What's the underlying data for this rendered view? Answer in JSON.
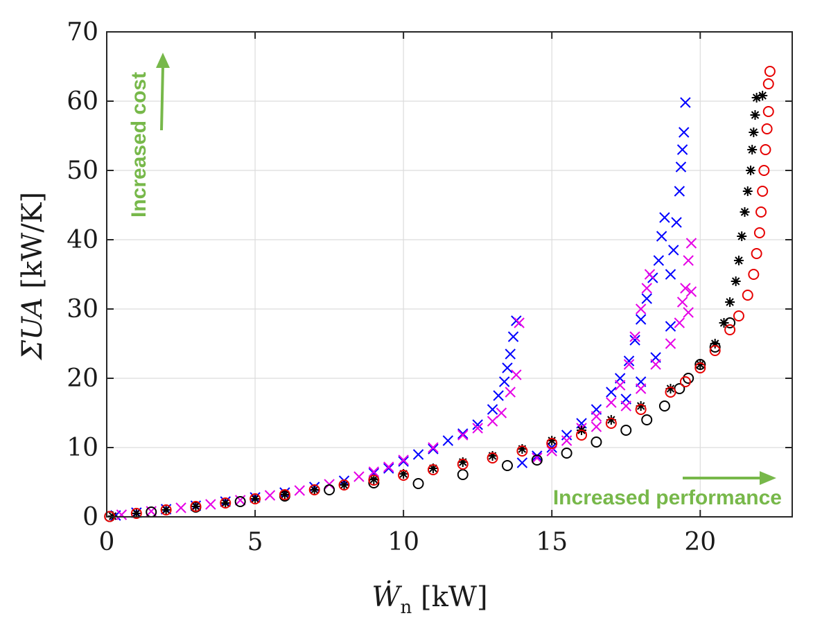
{
  "chart_data": {
    "type": "scatter",
    "title": "",
    "xlabel": {
      "symbol": "Ẇ",
      "subscript": "n",
      "unit": "[kW]"
    },
    "ylabel": {
      "symbol": "ΣUA",
      "unit": "[kW/K]"
    },
    "xlim": [
      0,
      23.1
    ],
    "ylim": [
      0,
      70
    ],
    "xticks": [
      0,
      5,
      10,
      15,
      20
    ],
    "yticks": [
      0,
      10,
      20,
      30,
      40,
      50,
      60,
      70
    ],
    "xtick_labels": [
      "0",
      "5",
      "10",
      "15",
      "20"
    ],
    "ytick_labels": [
      "0",
      "10",
      "20",
      "30",
      "40",
      "50",
      "60",
      "70"
    ],
    "grid": true,
    "series": [
      {
        "marker": "x",
        "color": "#0000ff",
        "points": [
          [
            0.3,
            0.2
          ],
          [
            1.0,
            0.6
          ],
          [
            2.0,
            1.1
          ],
          [
            3.0,
            1.6
          ],
          [
            4.0,
            2.2
          ],
          [
            5.0,
            2.8
          ],
          [
            6.0,
            3.5
          ],
          [
            7.0,
            4.3
          ],
          [
            8.0,
            5.2
          ],
          [
            9.0,
            6.3
          ],
          [
            9.5,
            7.0
          ],
          [
            10.0,
            8.0
          ],
          [
            10.5,
            9.0
          ],
          [
            11.0,
            9.8
          ],
          [
            11.5,
            11.0
          ],
          [
            12.0,
            12.0
          ],
          [
            12.5,
            13.3
          ],
          [
            13.0,
            15.5
          ],
          [
            13.2,
            17.5
          ],
          [
            13.4,
            19.5
          ],
          [
            13.5,
            21.5
          ],
          [
            13.6,
            23.5
          ],
          [
            13.7,
            26.0
          ],
          [
            13.8,
            28.3
          ],
          [
            14.0,
            7.8
          ],
          [
            14.5,
            8.8
          ],
          [
            15.0,
            10.0
          ],
          [
            15.5,
            11.8
          ],
          [
            16.0,
            13.5
          ],
          [
            16.5,
            15.5
          ],
          [
            17.0,
            18.0
          ],
          [
            17.3,
            20.0
          ],
          [
            17.6,
            22.5
          ],
          [
            17.8,
            25.5
          ],
          [
            18.0,
            28.5
          ],
          [
            18.2,
            31.5
          ],
          [
            18.4,
            34.5
          ],
          [
            18.6,
            37.0
          ],
          [
            18.7,
            40.5
          ],
          [
            18.8,
            43.2
          ],
          [
            19.0,
            35.0
          ],
          [
            19.1,
            38.5
          ],
          [
            19.2,
            42.5
          ],
          [
            19.3,
            47.0
          ],
          [
            19.35,
            50.5
          ],
          [
            19.4,
            53.0
          ],
          [
            19.45,
            55.5
          ],
          [
            19.5,
            59.8
          ],
          [
            17.5,
            17.0
          ],
          [
            18.0,
            19.5
          ],
          [
            18.5,
            23.0
          ],
          [
            19.0,
            27.5
          ]
        ]
      },
      {
        "marker": "x",
        "color": "#e600e6",
        "points": [
          [
            0.5,
            0.3
          ],
          [
            1.5,
            0.8
          ],
          [
            2.5,
            1.3
          ],
          [
            3.5,
            1.8
          ],
          [
            4.5,
            2.4
          ],
          [
            5.5,
            3.1
          ],
          [
            6.5,
            3.8
          ],
          [
            7.5,
            4.7
          ],
          [
            8.5,
            5.8
          ],
          [
            9.0,
            6.5
          ],
          [
            9.5,
            7.2
          ],
          [
            10.0,
            8.2
          ],
          [
            11.0,
            10.0
          ],
          [
            12.0,
            11.8
          ],
          [
            12.5,
            12.8
          ],
          [
            13.0,
            13.8
          ],
          [
            13.3,
            15.0
          ],
          [
            13.6,
            18.0
          ],
          [
            13.8,
            20.5
          ],
          [
            13.9,
            28.0
          ],
          [
            14.5,
            8.5
          ],
          [
            15.0,
            9.5
          ],
          [
            15.5,
            11.0
          ],
          [
            16.0,
            12.8
          ],
          [
            16.5,
            14.5
          ],
          [
            17.0,
            16.5
          ],
          [
            17.3,
            19.0
          ],
          [
            17.6,
            22.0
          ],
          [
            17.8,
            26.0
          ],
          [
            18.0,
            30.0
          ],
          [
            18.2,
            33.0
          ],
          [
            18.3,
            35.0
          ],
          [
            18.5,
            22.0
          ],
          [
            19.0,
            25.0
          ],
          [
            19.3,
            28.0
          ],
          [
            19.5,
            33.0
          ],
          [
            19.6,
            37.0
          ],
          [
            19.7,
            39.5
          ],
          [
            19.4,
            31.0
          ],
          [
            19.6,
            29.5
          ],
          [
            19.7,
            32.5
          ],
          [
            16.5,
            13.0
          ],
          [
            17.5,
            16.0
          ],
          [
            18.0,
            18.5
          ]
        ]
      },
      {
        "marker": "*",
        "color": "#000000",
        "points": [
          [
            0.2,
            0.1
          ],
          [
            1.0,
            0.5
          ],
          [
            2.0,
            1.0
          ],
          [
            3.0,
            1.5
          ],
          [
            4.0,
            2.0
          ],
          [
            5.0,
            2.6
          ],
          [
            6.0,
            3.2
          ],
          [
            7.0,
            3.9
          ],
          [
            8.0,
            4.6
          ],
          [
            9.0,
            5.4
          ],
          [
            10.0,
            6.2
          ],
          [
            11.0,
            7.0
          ],
          [
            12.0,
            7.9
          ],
          [
            13.0,
            8.8
          ],
          [
            14.0,
            9.8
          ],
          [
            15.0,
            11.0
          ],
          [
            16.0,
            12.5
          ],
          [
            17.0,
            14.0
          ],
          [
            18.0,
            16.0
          ],
          [
            19.0,
            18.5
          ],
          [
            20.0,
            22.0
          ],
          [
            20.5,
            25.0
          ],
          [
            20.8,
            28.0
          ],
          [
            21.0,
            31.0
          ],
          [
            21.2,
            34.0
          ],
          [
            21.3,
            37.0
          ],
          [
            21.4,
            40.5
          ],
          [
            21.5,
            44.0
          ],
          [
            21.6,
            47.0
          ],
          [
            21.7,
            50.0
          ],
          [
            21.75,
            53.0
          ],
          [
            21.8,
            55.5
          ],
          [
            21.85,
            58.0
          ],
          [
            21.9,
            60.5
          ],
          [
            22.1,
            60.8
          ]
        ]
      },
      {
        "marker": "o",
        "color": "#000000",
        "points": [
          [
            0.1,
            0.05
          ],
          [
            1.5,
            0.7
          ],
          [
            3.0,
            1.4
          ],
          [
            4.5,
            2.2
          ],
          [
            6.0,
            3.0
          ],
          [
            7.5,
            3.9
          ],
          [
            9.0,
            4.9
          ],
          [
            10.5,
            4.8
          ],
          [
            12.0,
            6.1
          ],
          [
            13.5,
            7.4
          ],
          [
            14.5,
            8.2
          ],
          [
            15.5,
            9.2
          ],
          [
            16.5,
            10.8
          ],
          [
            17.5,
            12.5
          ],
          [
            18.2,
            14.0
          ],
          [
            18.8,
            16.0
          ],
          [
            19.3,
            18.5
          ],
          [
            19.6,
            20.0
          ],
          [
            20.0,
            22.0
          ],
          [
            20.5,
            24.5
          ],
          [
            21.0,
            28.0
          ]
        ]
      },
      {
        "marker": "o",
        "color": "#e60000",
        "points": [
          [
            0.1,
            0.05
          ],
          [
            1.0,
            0.5
          ],
          [
            2.0,
            1.0
          ],
          [
            3.0,
            1.5
          ],
          [
            4.0,
            2.0
          ],
          [
            5.0,
            2.6
          ],
          [
            6.0,
            3.2
          ],
          [
            7.0,
            3.9
          ],
          [
            8.0,
            4.6
          ],
          [
            9.0,
            5.3
          ],
          [
            10.0,
            6.0
          ],
          [
            11.0,
            6.8
          ],
          [
            12.0,
            7.6
          ],
          [
            13.0,
            8.5
          ],
          [
            14.0,
            9.5
          ],
          [
            15.0,
            10.6
          ],
          [
            16.0,
            11.8
          ],
          [
            17.0,
            13.5
          ],
          [
            18.0,
            15.5
          ],
          [
            19.0,
            18.0
          ],
          [
            19.5,
            19.5
          ],
          [
            20.0,
            21.5
          ],
          [
            20.5,
            24.0
          ],
          [
            21.0,
            27.0
          ],
          [
            21.3,
            29.0
          ],
          [
            21.6,
            32.0
          ],
          [
            21.8,
            35.0
          ],
          [
            21.9,
            38.0
          ],
          [
            22.0,
            41.0
          ],
          [
            22.05,
            44.0
          ],
          [
            22.1,
            47.0
          ],
          [
            22.15,
            50.0
          ],
          [
            22.2,
            53.0
          ],
          [
            22.25,
            56.0
          ],
          [
            22.3,
            58.5
          ],
          [
            22.3,
            62.5
          ],
          [
            22.35,
            64.3
          ]
        ]
      }
    ],
    "annotations": {
      "cost_label": "Increased cost",
      "performance_label": "Increased performance",
      "arrow_color": "#77b84a"
    }
  }
}
